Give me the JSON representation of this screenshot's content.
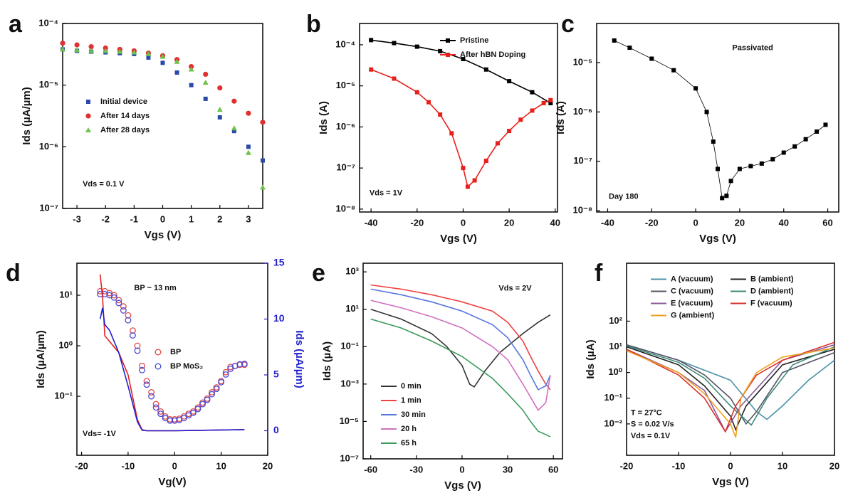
{
  "chart_data": [
    {
      "panel": "a",
      "type": "line",
      "ylog": true,
      "xlim": [
        -3.5,
        3.5
      ],
      "xticks": [
        -3,
        -2,
        -1,
        0,
        1,
        2,
        3
      ],
      "ylim": [
        1e-07,
        0.0001
      ],
      "yticks": [
        {
          "value": 0.0001,
          "label": "10⁻⁴"
        },
        {
          "value": 1e-05,
          "label": "10⁻⁵"
        },
        {
          "value": 1e-06,
          "label": "10⁻⁶"
        },
        {
          "value": 1e-07,
          "label": "10⁻⁷"
        }
      ],
      "xlabel": "Vgs (V)",
      "ylabel": "Ids (µA/µm)",
      "legend": "center left",
      "annotations": [
        "Vds = 0.1 V"
      ],
      "series": [
        {
          "name": "Initial device",
          "color": "#2b4aa8",
          "marker": "square",
          "line": false,
          "x": [
            -3.5,
            -3,
            -2.5,
            -2,
            -1.5,
            -1,
            -0.5,
            0,
            0.5,
            1,
            1.5,
            2,
            2.5,
            3,
            3.5
          ],
          "values": [
            3.8e-05,
            3.6e-05,
            3.5e-05,
            3.4e-05,
            3.3e-05,
            3.2e-05,
            2.8e-05,
            2.3e-05,
            1.6e-05,
            1e-05,
            6e-06,
            3e-06,
            1.8e-06,
            1e-06,
            6e-07
          ]
        },
        {
          "name": "After 14 days",
          "color": "#e03030",
          "marker": "circle",
          "line": false,
          "x": [
            -3.5,
            -3,
            -2.5,
            -2,
            -1.5,
            -1,
            -0.5,
            0,
            0.5,
            1,
            1.5,
            2,
            2.5,
            3,
            3.5
          ],
          "values": [
            4.8e-05,
            4.5e-05,
            4.2e-05,
            4e-05,
            3.8e-05,
            3.6e-05,
            3.3e-05,
            3e-05,
            2.6e-05,
            2e-05,
            1.5e-05,
            9e-06,
            5.5e-06,
            3.5e-06,
            2.5e-06
          ]
        },
        {
          "name": "After 28 days",
          "color": "#6cc24a",
          "marker": "triangle",
          "line": false,
          "x": [
            -3.5,
            -3,
            -2.5,
            -2,
            -1.5,
            -1,
            -0.5,
            0,
            0.5,
            1,
            1.5,
            2,
            2.5,
            3,
            3.5
          ],
          "values": [
            3.8e-05,
            3.7e-05,
            3.6e-05,
            3.6e-05,
            3.5e-05,
            3.4e-05,
            3.2e-05,
            2.9e-05,
            2.4e-05,
            1.8e-05,
            1.1e-05,
            4e-06,
            2e-06,
            8e-07,
            2.2e-07
          ]
        }
      ]
    },
    {
      "panel": "b",
      "type": "line",
      "ylog": true,
      "xlim": [
        -45,
        41
      ],
      "xticks": [
        -40,
        -20,
        0,
        20,
        40
      ],
      "ylim": [
        8.5e-09,
        0.00033
      ],
      "yticks": [
        {
          "value": 0.0001,
          "label": "10⁻⁴"
        },
        {
          "value": 1e-05,
          "label": "10⁻⁵"
        },
        {
          "value": 1e-06,
          "label": "10⁻⁶"
        },
        {
          "value": 1e-07,
          "label": "10⁻⁷"
        },
        {
          "value": 1e-08,
          "label": "10⁻⁸"
        }
      ],
      "xlabel": "Vgs (V)",
      "ylabel": "Ids (A)",
      "legend": "upper right",
      "annotations": [
        "Vds = 1V"
      ],
      "series": [
        {
          "name": "Pristine",
          "color": "#000000",
          "marker": "square",
          "x": [
            -40,
            -30,
            -20,
            -10,
            0,
            10,
            20,
            30,
            38
          ],
          "values": [
            0.00013,
            0.00011,
            9e-05,
            7e-05,
            4.5e-05,
            2.5e-05,
            1.3e-05,
            7e-06,
            3.8e-06
          ]
        },
        {
          "name": "After hBN Doping",
          "color": "#e8201c",
          "marker": "square",
          "x": [
            -40,
            -30,
            -20,
            -15,
            -10,
            -5,
            0,
            2,
            5,
            10,
            15,
            20,
            25,
            30,
            35,
            38
          ],
          "values": [
            2.5e-05,
            1.5e-05,
            7e-06,
            4e-06,
            2e-06,
            7e-07,
            1e-07,
            3.5e-08,
            5e-08,
            1.5e-07,
            4e-07,
            8e-07,
            1.5e-06,
            2.5e-06,
            3.8e-06,
            4.5e-06
          ]
        }
      ]
    },
    {
      "panel": "c",
      "type": "line",
      "ylog": true,
      "xlim": [
        -45,
        65
      ],
      "xticks": [
        -40,
        -20,
        0,
        20,
        40,
        60
      ],
      "ylim": [
        9.4e-09,
        6.2e-05
      ],
      "yticks": [
        {
          "value": 1e-05,
          "label": "10⁻⁵"
        },
        {
          "value": 1e-06,
          "label": "10⁻⁶"
        },
        {
          "value": 1e-07,
          "label": "10⁻⁷"
        },
        {
          "value": 1e-08,
          "label": "10⁻⁸"
        }
      ],
      "xlabel": "Vgs (V)",
      "ylabel": "Ids (A)",
      "annotations": [
        "Passivated",
        "Day 180"
      ],
      "series": [
        {
          "color": "#000000",
          "marker": "square",
          "thin": true,
          "x": [
            -37,
            -30,
            -20,
            -10,
            0,
            5,
            8,
            10,
            12,
            14,
            16,
            20,
            25,
            30,
            35,
            40,
            45,
            50,
            55,
            59
          ],
          "values": [
            2.8e-05,
            2e-05,
            1.2e-05,
            7e-06,
            3e-06,
            1e-06,
            2.5e-07,
            7e-08,
            1.8e-08,
            2e-08,
            4e-08,
            7e-08,
            8e-08,
            9e-08,
            1.1e-07,
            1.5e-07,
            2e-07,
            2.8e-07,
            4e-07,
            5.5e-07
          ]
        }
      ]
    },
    {
      "panel": "d",
      "type": "line",
      "ylog": true,
      "xlim": [
        -21,
        20
      ],
      "xticks": [
        -20,
        -10,
        0,
        10,
        20
      ],
      "ylim": [
        0.0068,
        43
      ],
      "yticks": [
        {
          "value": 10,
          "label": "10¹"
        },
        {
          "value": 1,
          "label": "10⁰"
        },
        {
          "value": 0.1,
          "label": "10⁻¹"
        }
      ],
      "y2lim": [
        -2.2,
        15
      ],
      "y2ticks": [
        0,
        5,
        10,
        15
      ],
      "y2color": "#2222cc",
      "xlabel": "Vg(V)",
      "ylabel": "Ids (µA/µm)",
      "y2label": "Ids (µA/µm)",
      "legend": "center right",
      "annotations": [
        "BP ~ 13 nm",
        "Vds= -1V"
      ],
      "series": [
        {
          "name": "BP",
          "color": "#e04848",
          "marker": "open-circle",
          "line": false,
          "x": [
            -16,
            -15,
            -14,
            -13,
            -12,
            -11,
            -10,
            -9,
            -8,
            -7,
            -6,
            -5,
            -4,
            -3,
            -2,
            -1,
            0,
            1,
            2,
            3,
            4,
            5,
            6,
            7,
            8,
            9,
            10,
            11,
            12,
            13,
            14,
            15
          ],
          "values": [
            12,
            12,
            11,
            10,
            8,
            6,
            4,
            2,
            1,
            0.4,
            0.2,
            0.12,
            0.07,
            0.05,
            0.04,
            0.035,
            0.035,
            0.036,
            0.04,
            0.045,
            0.05,
            0.06,
            0.075,
            0.09,
            0.12,
            0.15,
            0.2,
            0.3,
            0.38,
            0.4,
            0.42,
            0.42
          ]
        },
        {
          "name": "BP MoS₂",
          "color": "#4848d8",
          "marker": "open-circle",
          "line": false,
          "x": [
            -16,
            -15,
            -14,
            -13,
            -12,
            -11,
            -10,
            -9,
            -8,
            -7,
            -6,
            -5,
            -4,
            -3,
            -2,
            -1,
            0,
            1,
            2,
            3,
            4,
            5,
            6,
            7,
            8,
            9,
            10,
            11,
            12,
            13,
            14,
            15
          ],
          "values": [
            10.5,
            10.5,
            10,
            9,
            7,
            5,
            3.2,
            1.6,
            0.8,
            0.33,
            0.17,
            0.1,
            0.06,
            0.045,
            0.037,
            0.033,
            0.033,
            0.034,
            0.037,
            0.042,
            0.047,
            0.056,
            0.07,
            0.085,
            0.11,
            0.14,
            0.19,
            0.27,
            0.35,
            0.4,
            0.43,
            0.44
          ]
        },
        {
          "color": "#e02020",
          "axis": "y2",
          "x": [
            -16,
            -15.5,
            -15,
            -14,
            -12,
            -10,
            -9,
            -8,
            -7,
            -6,
            0,
            15
          ],
          "values": [
            14,
            12,
            8.5,
            8,
            7,
            5,
            3,
            1,
            0.1,
            0,
            0,
            0.1
          ]
        },
        {
          "color": "#2020d0",
          "axis": "y2",
          "x": [
            -16,
            -15.5,
            -15,
            -14,
            -12,
            -10,
            -8,
            -7,
            -6,
            0,
            15
          ],
          "values": [
            10,
            11,
            9.5,
            9,
            7,
            4,
            0.8,
            0.05,
            0,
            0,
            0.1
          ]
        }
      ]
    },
    {
      "panel": "e",
      "type": "line",
      "ylog": true,
      "xlim": [
        -65,
        66
      ],
      "xticks": [
        -60,
        -30,
        0,
        30,
        60
      ],
      "ylim": [
        1e-07,
        2900
      ],
      "yticks": [
        {
          "value": 1000,
          "label": "10³"
        },
        {
          "value": 10,
          "label": "10¹"
        },
        {
          "value": 0.1,
          "label": "10⁻¹"
        },
        {
          "value": 0.001,
          "label": "10⁻³"
        },
        {
          "value": 1e-05,
          "label": "10⁻⁵"
        },
        {
          "value": 1e-07,
          "label": "10⁻⁷"
        }
      ],
      "xlabel": "Vgs (V)",
      "ylabel": "Ids (µA)",
      "legend": "lower left",
      "annotations": [
        "Vds = 2V"
      ],
      "series": [
        {
          "name": "0 min",
          "color": "#333333",
          "x": [
            -60,
            -40,
            -20,
            -10,
            0,
            5,
            8,
            15,
            25,
            40,
            50,
            58
          ],
          "values": [
            10,
            3,
            0.5,
            0.1,
            0.01,
            0.001,
            0.0007,
            0.005,
            0.05,
            0.5,
            2,
            5
          ]
        },
        {
          "name": "1 min",
          "color": "#f04040",
          "x": [
            -60,
            -40,
            -20,
            0,
            20,
            30,
            40,
            45,
            50,
            55,
            58
          ],
          "values": [
            200,
            120,
            60,
            25,
            8,
            2,
            0.2,
            0.03,
            0.005,
            0.001,
            0.0005
          ]
        },
        {
          "name": "30 min",
          "color": "#5577dd",
          "x": [
            -60,
            -40,
            -20,
            0,
            20,
            30,
            40,
            45,
            50,
            55,
            58
          ],
          "values": [
            120,
            60,
            25,
            8,
            1.5,
            0.3,
            0.02,
            0.003,
            0.0005,
            0.0008,
            0.003
          ]
        },
        {
          "name": "20 h",
          "color": "#d070c0",
          "x": [
            -60,
            -40,
            -20,
            0,
            20,
            30,
            40,
            45,
            50,
            55,
            58
          ],
          "values": [
            30,
            12,
            4,
            1,
            0.1,
            0.02,
            0.001,
            0.0002,
            4e-05,
            0.0001,
            0.003
          ]
        },
        {
          "name": "65 h",
          "color": "#3a9a5a",
          "x": [
            -60,
            -40,
            -20,
            0,
            20,
            30,
            40,
            45,
            50,
            55,
            58
          ],
          "values": [
            3,
            1,
            0.2,
            0.03,
            0.002,
            0.0003,
            4e-05,
            1e-05,
            3e-06,
            2e-06,
            1.5e-06
          ]
        }
      ]
    },
    {
      "panel": "f",
      "type": "line",
      "ylog": true,
      "xlim": [
        -20,
        20
      ],
      "xticks": [
        -20,
        -10,
        0,
        10,
        20
      ],
      "ylim": [
        0.0006,
        18000
      ],
      "yticks": [
        {
          "value": 100,
          "label": "10²"
        },
        {
          "value": 10,
          "label": "10¹"
        },
        {
          "value": 1,
          "label": "10⁰"
        },
        {
          "value": 0.1,
          "label": "10⁻¹"
        },
        {
          "value": 0.01,
          "label": "10⁻²"
        }
      ],
      "xlabel": "Vgs (V)",
      "ylabel": "Ids (µA)",
      "legend": "upper center",
      "legend_columns": 2,
      "annotations": [
        "T = 27°C",
        "S = 0.02 V/s",
        "Vds = 0.1V"
      ],
      "series": [
        {
          "name": "A (vacuum)",
          "color": "#4a90a8",
          "x": [
            -20,
            -10,
            0,
            5,
            7,
            10,
            15,
            20
          ],
          "values": [
            12,
            3,
            0.5,
            0.03,
            0.015,
            0.05,
            0.5,
            3
          ]
        },
        {
          "name": "B (ambient)",
          "color": "#222222",
          "x": [
            -20,
            -10,
            -5,
            0,
            1,
            3,
            10,
            20
          ],
          "values": [
            10,
            2,
            0.3,
            0.02,
            0.006,
            0.05,
            2,
            8
          ]
        },
        {
          "name": "C (vacuum)",
          "color": "#555566",
          "x": [
            -20,
            -10,
            -5,
            0,
            3,
            5,
            10,
            20
          ],
          "values": [
            12,
            3,
            0.8,
            0.1,
            0.01,
            0.03,
            1,
            6
          ]
        },
        {
          "name": "D (ambient)",
          "color": "#3e8a78",
          "x": [
            -20,
            -10,
            -5,
            0,
            4,
            7,
            12,
            20
          ],
          "values": [
            11,
            2.5,
            0.6,
            0.05,
            0.009,
            0.1,
            2,
            10
          ]
        },
        {
          "name": "E (vacuum)",
          "color": "#8a5a9a",
          "x": [
            -20,
            -10,
            -5,
            -1,
            2,
            10,
            20
          ],
          "values": [
            8,
            1,
            0.2,
            0.005,
            0.05,
            3,
            12
          ]
        },
        {
          "name": "F (vacuum)",
          "color": "#d8302c",
          "x": [
            -20,
            -10,
            -5,
            -1,
            1,
            5,
            10,
            20
          ],
          "values": [
            8,
            0.8,
            0.1,
            0.005,
            0.05,
            0.8,
            3,
            15
          ]
        },
        {
          "name": "G (ambient)",
          "color": "#f0a020",
          "x": [
            -20,
            -10,
            -5,
            0,
            1,
            2,
            5,
            10,
            20
          ],
          "values": [
            7,
            1,
            0.15,
            0.01,
            0.003,
            0.1,
            1,
            4,
            9
          ]
        }
      ]
    }
  ]
}
